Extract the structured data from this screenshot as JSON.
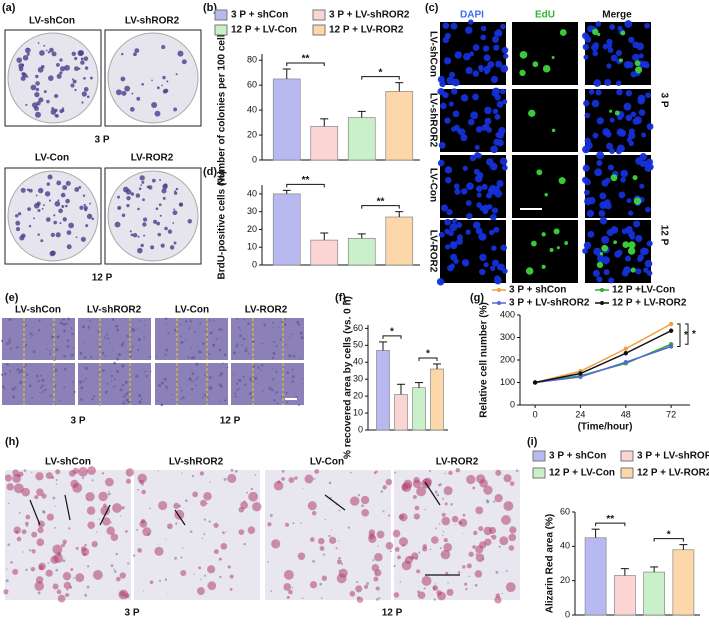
{
  "figure": {
    "a": {
      "label": "(a)",
      "top": [
        "LV-shCon",
        "LV-shROR2"
      ],
      "top_group": "3 P",
      "bottom": [
        "LV-Con",
        "LV-ROR2"
      ],
      "bottom_group": "12 P"
    },
    "c": {
      "label": "(c)",
      "columns": [
        "DAPI",
        "EdU",
        "Merge"
      ],
      "rows": [
        "LV-shCon",
        "LV-shROR2",
        "LV-Con",
        "LV-ROR2"
      ],
      "groups": [
        "3 P",
        "12 P"
      ]
    },
    "e": {
      "label": "(e)",
      "columns": [
        "LV-shCon",
        "LV-shROR2",
        "LV-Con",
        "LV-ROR2"
      ],
      "groups": [
        "3 P",
        "12 P"
      ]
    },
    "h": {
      "label": "(h)",
      "columns": [
        "LV-shCon",
        "LV-shROR2",
        "LV-Con",
        "LV-ROR2"
      ],
      "groups": [
        "3 P",
        "12 P"
      ]
    }
  },
  "chart_data": [
    {
      "type": "bar",
      "label": "(b)",
      "ylabel": "Number of colonies per 100 cells",
      "ylim": [
        0,
        85
      ],
      "yticks": [
        0,
        20,
        40,
        60,
        80
      ],
      "series": [
        {
          "name": "3 P + shCon",
          "color": "#b9b9f2",
          "values": [
            65
          ],
          "errors": [
            8
          ]
        },
        {
          "name": "3 P + LV-shROR2",
          "color": "#fbd4d4",
          "values": [
            27
          ],
          "errors": [
            6
          ]
        },
        {
          "name": "12 P + LV-Con",
          "color": "#c9f0c9",
          "values": [
            34
          ],
          "errors": [
            5
          ]
        },
        {
          "name": "12 P + LV-ROR2",
          "color": "#fbd7a9",
          "values": [
            55
          ],
          "errors": [
            7
          ]
        }
      ],
      "annotations": [
        "**",
        "*"
      ]
    },
    {
      "type": "bar",
      "label": "(d)",
      "ylabel": "BrdU-positive cells (%)",
      "ylim": [
        0,
        45
      ],
      "yticks": [
        0,
        10,
        20,
        30,
        40
      ],
      "series": [
        {
          "color": "#b9b9f2",
          "values": [
            40
          ],
          "errors": [
            2
          ]
        },
        {
          "color": "#fbd4d4",
          "values": [
            14
          ],
          "errors": [
            4
          ]
        },
        {
          "color": "#c9f0c9",
          "values": [
            15
          ],
          "errors": [
            2.5
          ]
        },
        {
          "color": "#fbd7a9",
          "values": [
            27
          ],
          "errors": [
            3
          ]
        }
      ],
      "annotations": [
        "**",
        "**"
      ]
    },
    {
      "type": "bar",
      "label": "(f)",
      "ylabel": "% recovered area by cells (vs. 0 h)",
      "ylim": [
        0,
        62
      ],
      "yticks": [
        0,
        10,
        20,
        30,
        40,
        50,
        60
      ],
      "series": [
        {
          "color": "#b9b9f2",
          "values": [
            47
          ],
          "errors": [
            5
          ]
        },
        {
          "color": "#fbd4d4",
          "values": [
            21
          ],
          "errors": [
            6
          ]
        },
        {
          "color": "#c9f0c9",
          "values": [
            25
          ],
          "errors": [
            3
          ]
        },
        {
          "color": "#fbd7a9",
          "values": [
            36
          ],
          "errors": [
            3
          ]
        }
      ],
      "annotations": [
        "*",
        "*"
      ]
    },
    {
      "type": "line",
      "label": "(g)",
      "ylabel": "Relative cell number (%)",
      "xlabel": "(Time/hour)",
      "x": [
        0,
        24,
        48,
        72
      ],
      "xlim": [
        -8,
        82
      ],
      "xticks": [
        0,
        24,
        48,
        72
      ],
      "ylim": [
        0,
        400
      ],
      "yticks": [
        0,
        100,
        200,
        300,
        400
      ],
      "series": [
        {
          "name": "3 P + shCon",
          "color": "#f0a040",
          "values": [
            100,
            150,
            250,
            360
          ]
        },
        {
          "name": "12 P +LV-Con",
          "color": "#33aa33",
          "values": [
            100,
            130,
            185,
            270
          ]
        },
        {
          "name": "3 P + LV-shROR2",
          "color": "#5566dd",
          "values": [
            100,
            125,
            190,
            260
          ]
        },
        {
          "name": "12 P + LV-ROR2",
          "color": "#111111",
          "values": [
            100,
            140,
            230,
            330
          ]
        }
      ],
      "annotations": [
        "*",
        "*"
      ]
    },
    {
      "type": "bar",
      "label": "(i)",
      "ylabel": "Alizarin Red area (%)",
      "ylim": [
        0,
        60
      ],
      "yticks": [
        0,
        20,
        40,
        60
      ],
      "series": [
        {
          "name": "3 P + shCon",
          "color": "#b9b9f2",
          "values": [
            45
          ],
          "errors": [
            5
          ]
        },
        {
          "name": "3 P + LV-shROR2",
          "color": "#fbd4d4",
          "values": [
            23
          ],
          "errors": [
            4
          ]
        },
        {
          "name": "12 P + LV-Con",
          "color": "#c9f0c9",
          "values": [
            25
          ],
          "errors": [
            3
          ]
        },
        {
          "name": "12 P + LV-ROR2",
          "color": "#fbd7a9",
          "values": [
            38
          ],
          "errors": [
            3
          ]
        }
      ],
      "annotations": [
        "**",
        "*"
      ]
    }
  ]
}
